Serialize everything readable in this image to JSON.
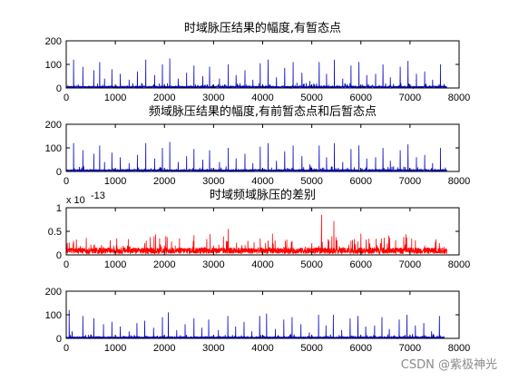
{
  "watermark": "CSDN @紫极神光",
  "chart_data": [
    {
      "type": "line",
      "title": "时域脉压结果的幅度,有暂态点",
      "x_range": [
        0,
        8000
      ],
      "ylim": [
        0,
        200
      ],
      "x_ticks": [
        "0",
        "1000",
        "2000",
        "3000",
        "4000",
        "5000",
        "6000",
        "7000",
        "8000"
      ],
      "y_ticks": [
        "0",
        "100",
        "200"
      ],
      "color": "#0000c8",
      "series": [
        {
          "n_points": 7750,
          "baseline": 6,
          "peaks": [
            [
              150,
              120
            ],
            [
              340,
              90
            ],
            [
              560,
              75
            ],
            [
              680,
              110
            ],
            [
              780,
              40
            ],
            [
              930,
              80
            ],
            [
              1100,
              60
            ],
            [
              1280,
              35
            ],
            [
              1450,
              70
            ],
            [
              1620,
              120
            ],
            [
              1800,
              55
            ],
            [
              1960,
              100
            ],
            [
              2110,
              125
            ],
            [
              2280,
              40
            ],
            [
              2450,
              65
            ],
            [
              2600,
              95
            ],
            [
              2780,
              50
            ],
            [
              2920,
              90
            ],
            [
              3120,
              40
            ],
            [
              3300,
              100
            ],
            [
              3460,
              55
            ],
            [
              3640,
              75
            ],
            [
              3800,
              35
            ],
            [
              3950,
              105
            ],
            [
              4110,
              120
            ],
            [
              4280,
              45
            ],
            [
              4450,
              85
            ],
            [
              4620,
              110
            ],
            [
              4800,
              65
            ],
            [
              4960,
              30
            ],
            [
              5150,
              110
            ],
            [
              5300,
              60
            ],
            [
              5460,
              120
            ],
            [
              5630,
              40
            ],
            [
              5800,
              95
            ],
            [
              5960,
              110
            ],
            [
              6120,
              55
            ],
            [
              6300,
              60
            ],
            [
              6450,
              100
            ],
            [
              6600,
              45
            ],
            [
              6800,
              90
            ],
            [
              6960,
              115
            ],
            [
              7130,
              60
            ],
            [
              7300,
              70
            ],
            [
              7460,
              35
            ],
            [
              7620,
              100
            ]
          ]
        }
      ]
    },
    {
      "type": "line",
      "title": "频域脉压结果的幅度,有前暂态点和后暂态点",
      "x_range": [
        0,
        8000
      ],
      "ylim": [
        0,
        200
      ],
      "x_ticks": [
        "0",
        "1000",
        "2000",
        "3000",
        "4000",
        "5000",
        "6000",
        "7000",
        "8000"
      ],
      "y_ticks": [
        "0",
        "100",
        "200"
      ],
      "color": "#0000c8",
      "series": [
        {
          "n_points": 7750,
          "baseline": 6,
          "peaks": [
            [
              150,
              120
            ],
            [
              340,
              90
            ],
            [
              560,
              75
            ],
            [
              680,
              110
            ],
            [
              780,
              40
            ],
            [
              930,
              80
            ],
            [
              1100,
              60
            ],
            [
              1280,
              35
            ],
            [
              1450,
              70
            ],
            [
              1620,
              120
            ],
            [
              1800,
              55
            ],
            [
              1960,
              100
            ],
            [
              2110,
              125
            ],
            [
              2280,
              40
            ],
            [
              2450,
              65
            ],
            [
              2600,
              95
            ],
            [
              2780,
              50
            ],
            [
              2920,
              90
            ],
            [
              3120,
              40
            ],
            [
              3300,
              100
            ],
            [
              3460,
              55
            ],
            [
              3640,
              75
            ],
            [
              3800,
              35
            ],
            [
              3950,
              105
            ],
            [
              4110,
              120
            ],
            [
              4280,
              45
            ],
            [
              4450,
              85
            ],
            [
              4620,
              110
            ],
            [
              4800,
              65
            ],
            [
              4960,
              30
            ],
            [
              5150,
              110
            ],
            [
              5300,
              60
            ],
            [
              5460,
              120
            ],
            [
              5630,
              40
            ],
            [
              5800,
              95
            ],
            [
              5960,
              110
            ],
            [
              6120,
              55
            ],
            [
              6300,
              60
            ],
            [
              6450,
              100
            ],
            [
              6600,
              45
            ],
            [
              6800,
              90
            ],
            [
              6960,
              115
            ],
            [
              7130,
              60
            ],
            [
              7300,
              70
            ],
            [
              7460,
              35
            ],
            [
              7620,
              100
            ]
          ]
        }
      ]
    },
    {
      "type": "line",
      "title": "时域频域脉压的差别",
      "x_range": [
        0,
        8000
      ],
      "ylim": [
        0,
        1
      ],
      "y_exponent_label": "x 10",
      "y_exponent_power": "-13",
      "x_ticks": [
        "0",
        "1000",
        "2000",
        "3000",
        "4000",
        "5000",
        "6000",
        "7000",
        "8000"
      ],
      "y_ticks": [
        "0",
        "0.5",
        "1"
      ],
      "color": "#ff0000",
      "series": [
        {
          "n_points": 7750,
          "baseline": 0.12,
          "peaks": [
            [
              150,
              0.3
            ],
            [
              500,
              0.22
            ],
            [
              900,
              0.2
            ],
            [
              1300,
              0.18
            ],
            [
              1600,
              0.25
            ],
            [
              2000,
              0.2
            ],
            [
              2600,
              0.42
            ],
            [
              3000,
              0.2
            ],
            [
              3300,
              0.55
            ],
            [
              3700,
              0.3
            ],
            [
              3950,
              0.35
            ],
            [
              4200,
              0.45
            ],
            [
              4600,
              0.3
            ],
            [
              5000,
              0.25
            ],
            [
              5200,
              0.85
            ],
            [
              5350,
              0.3
            ],
            [
              5450,
              0.72
            ],
            [
              5800,
              0.3
            ],
            [
              6000,
              0.45
            ],
            [
              6400,
              0.25
            ],
            [
              6900,
              0.22
            ],
            [
              7300,
              0.2
            ],
            [
              7600,
              0.25
            ]
          ]
        }
      ]
    },
    {
      "type": "line",
      "title": "",
      "x_range": [
        0,
        8000
      ],
      "ylim": [
        0,
        200
      ],
      "x_ticks": [
        "0",
        "1000",
        "2000",
        "3000",
        "4000",
        "5000",
        "6000",
        "7000",
        "8000"
      ],
      "y_ticks": [
        "0",
        "100",
        "200"
      ],
      "color": "#0000c8",
      "series": [
        {
          "n_points": 7700,
          "baseline": 5,
          "peaks": [
            [
              60,
              120
            ],
            [
              120,
              30
            ],
            [
              340,
              95
            ],
            [
              560,
              85
            ],
            [
              760,
              60
            ],
            [
              930,
              70
            ],
            [
              1100,
              50
            ],
            [
              1280,
              30
            ],
            [
              1440,
              65
            ],
            [
              1600,
              75
            ],
            [
              1780,
              45
            ],
            [
              1960,
              90
            ],
            [
              2080,
              110
            ],
            [
              2250,
              35
            ],
            [
              2420,
              60
            ],
            [
              2600,
              85
            ],
            [
              2760,
              45
            ],
            [
              2900,
              80
            ],
            [
              3100,
              35
            ],
            [
              3290,
              95
            ],
            [
              3450,
              50
            ],
            [
              3620,
              70
            ],
            [
              3780,
              30
            ],
            [
              3940,
              95
            ],
            [
              4080,
              105
            ],
            [
              4260,
              40
            ],
            [
              4430,
              80
            ],
            [
              4600,
              90
            ],
            [
              4780,
              60
            ],
            [
              4950,
              25
            ],
            [
              5140,
              100
            ],
            [
              5290,
              55
            ],
            [
              5440,
              100
            ],
            [
              5610,
              35
            ],
            [
              5780,
              85
            ],
            [
              5940,
              95
            ],
            [
              6100,
              50
            ],
            [
              6280,
              55
            ],
            [
              6430,
              90
            ],
            [
              6580,
              40
            ],
            [
              6780,
              80
            ],
            [
              6940,
              100
            ],
            [
              7110,
              55
            ],
            [
              7280,
              65
            ],
            [
              7440,
              30
            ],
            [
              7600,
              95
            ]
          ]
        }
      ]
    }
  ]
}
